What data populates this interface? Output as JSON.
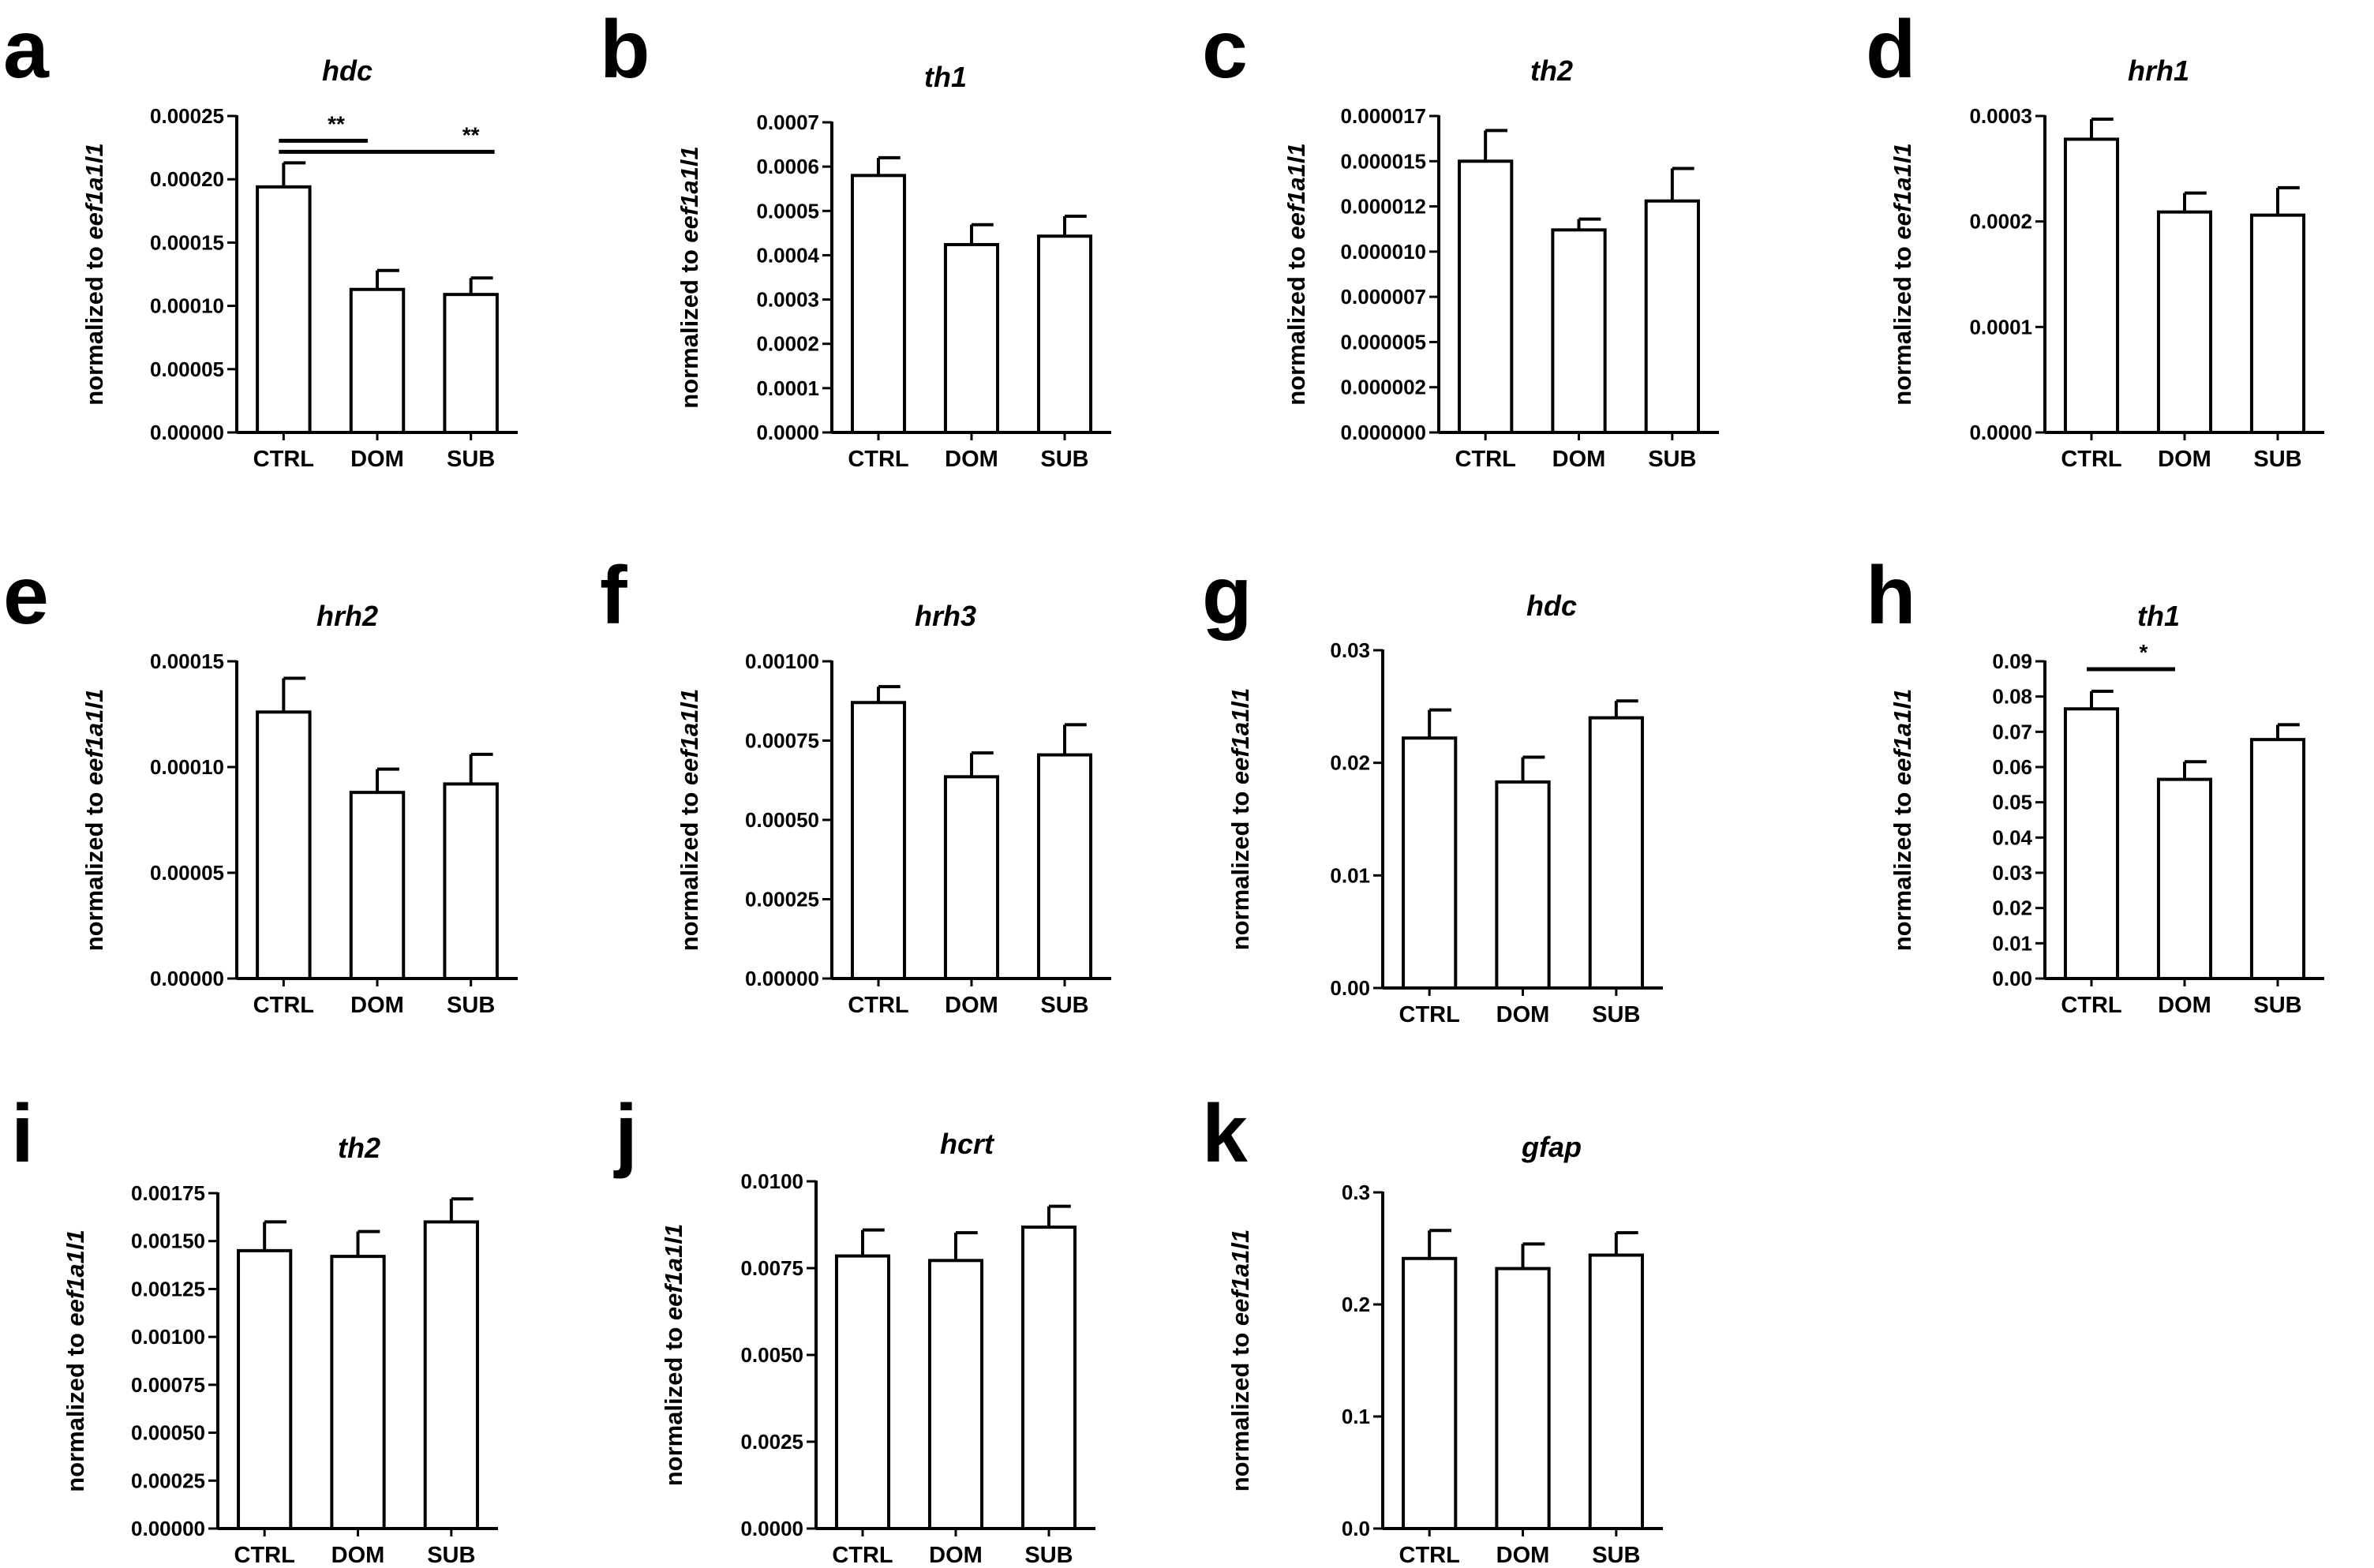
{
  "chart_data": [
    {
      "panel": "a",
      "type": "bar",
      "title": "hdc",
      "ylabel_prefix": "normalized to ",
      "ylabel_gene": "eef1a1l1",
      "categories": [
        "CTRL",
        "DOM",
        "SUB"
      ],
      "values": [
        0.000194,
        0.000113,
        0.000109
      ],
      "errors": [
        1.9e-05,
        1.5e-05,
        1.3e-05
      ],
      "ylim": [
        0,
        0.00025
      ],
      "yticks": [
        "0.00000",
        "0.00005",
        "0.00010",
        "0.00015",
        "0.00020",
        "0.00025"
      ],
      "significance": [
        {
          "from": 0,
          "to": 1,
          "label": "**"
        },
        {
          "from": 0,
          "to": 2,
          "label": "**"
        }
      ]
    },
    {
      "panel": "b",
      "type": "bar",
      "title": "th1",
      "ylabel_prefix": "normalized to ",
      "ylabel_gene": "eef1a1l1",
      "categories": [
        "CTRL",
        "DOM",
        "SUB"
      ],
      "values": [
        0.00058,
        0.000424,
        0.000443
      ],
      "errors": [
        4e-05,
        4.5e-05,
        4.5e-05
      ],
      "ylim": [
        0,
        0.0007
      ],
      "yticks": [
        "0.0000",
        "0.0001",
        "0.0002",
        "0.0003",
        "0.0004",
        "0.0005",
        "0.0006",
        "0.0007"
      ],
      "significance": []
    },
    {
      "panel": "c",
      "type": "bar",
      "title": "th2",
      "ylabel_prefix": "normalized to ",
      "ylabel_gene": "eef1a1l1",
      "categories": [
        "CTRL",
        "DOM",
        "SUB"
      ],
      "values": [
        1.5e-05,
        1.12e-05,
        1.28e-05
      ],
      "errors": [
        1.7e-06,
        6e-07,
        1.8e-06
      ],
      "ylim": [
        0,
        1.75e-05
      ],
      "yticks": [
        "0.000000",
        "0.000002",
        "0.000005",
        "0.000007",
        "0.000010",
        "0.000012",
        "0.000015",
        "0.000017"
      ],
      "significance": []
    },
    {
      "panel": "d",
      "type": "bar",
      "title": "hrh1",
      "ylabel_prefix": "normalized to ",
      "ylabel_gene": "eef1a1l1",
      "categories": [
        "CTRL",
        "DOM",
        "SUB"
      ],
      "values": [
        0.000278,
        0.000209,
        0.000206
      ],
      "errors": [
        1.9e-05,
        1.8e-05,
        2.6e-05
      ],
      "ylim": [
        0,
        0.0003
      ],
      "yticks": [
        "0.0000",
        "0.0001",
        "0.0002",
        "0.0003"
      ],
      "significance": []
    },
    {
      "panel": "e",
      "type": "bar",
      "title": "hrh2",
      "ylabel_prefix": "normalized to ",
      "ylabel_gene": "eef1a1l1",
      "categories": [
        "CTRL",
        "DOM",
        "SUB"
      ],
      "values": [
        0.000126,
        8.8e-05,
        9.2e-05
      ],
      "errors": [
        1.6e-05,
        1.1e-05,
        1.4e-05
      ],
      "ylim": [
        0,
        0.00015
      ],
      "yticks": [
        "0.00000",
        "0.00005",
        "0.00010",
        "0.00015"
      ],
      "significance": []
    },
    {
      "panel": "f",
      "type": "bar",
      "title": "hrh3",
      "ylabel_prefix": "normalized to ",
      "ylabel_gene": "eef1a1l1",
      "categories": [
        "CTRL",
        "DOM",
        "SUB"
      ],
      "values": [
        0.00087,
        0.000636,
        0.000705
      ],
      "errors": [
        5e-05,
        7.5e-05,
        9.5e-05
      ],
      "ylim": [
        0,
        0.001
      ],
      "yticks": [
        "0.00000",
        "0.00025",
        "0.00050",
        "0.00075",
        "0.00100"
      ],
      "significance": []
    },
    {
      "panel": "g",
      "type": "bar",
      "title": "hdc",
      "ylabel_prefix": "normalized to ",
      "ylabel_gene": "eef1a1l1",
      "categories": [
        "CTRL",
        "DOM",
        "SUB"
      ],
      "values": [
        0.0222,
        0.0183,
        0.024
      ],
      "errors": [
        0.0025,
        0.0022,
        0.0015
      ],
      "ylim": [
        0,
        0.03
      ],
      "yticks": [
        "0.00",
        "0.01",
        "0.02",
        "0.03"
      ],
      "significance": []
    },
    {
      "panel": "h",
      "type": "bar",
      "title": "th1",
      "ylabel_prefix": "normalized to ",
      "ylabel_gene": "eef1a1l1",
      "categories": [
        "CTRL",
        "DOM",
        "SUB"
      ],
      "values": [
        0.0765,
        0.0565,
        0.0678
      ],
      "errors": [
        0.005,
        0.005,
        0.0042
      ],
      "ylim": [
        0,
        0.09
      ],
      "yticks": [
        "0.00",
        "0.01",
        "0.02",
        "0.03",
        "0.04",
        "0.05",
        "0.06",
        "0.07",
        "0.08",
        "0.09"
      ],
      "significance": [
        {
          "from": 0,
          "to": 1,
          "label": "*"
        }
      ]
    },
    {
      "panel": "i",
      "type": "bar",
      "title": "th2",
      "ylabel_prefix": "normalized to ",
      "ylabel_gene": "eef1a1l1",
      "categories": [
        "CTRL",
        "DOM",
        "SUB"
      ],
      "values": [
        0.00145,
        0.00142,
        0.0016
      ],
      "errors": [
        0.00015,
        0.00013,
        0.00012
      ],
      "ylim": [
        0,
        0.00175
      ],
      "yticks": [
        "0.00000",
        "0.00025",
        "0.00050",
        "0.00075",
        "0.00100",
        "0.00125",
        "0.00150",
        "0.00175"
      ],
      "significance": []
    },
    {
      "panel": "j",
      "type": "bar",
      "title": "hcrt",
      "ylabel_prefix": "normalized to ",
      "ylabel_gene": "eef1a1l1",
      "categories": [
        "CTRL",
        "DOM",
        "SUB"
      ],
      "values": [
        0.00785,
        0.00772,
        0.00868
      ],
      "errors": [
        0.00075,
        0.0008,
        0.0006
      ],
      "ylim": [
        0,
        0.01
      ],
      "yticks": [
        "0.0000",
        "0.0025",
        "0.0050",
        "0.0075",
        "0.0100"
      ],
      "significance": []
    },
    {
      "panel": "k",
      "type": "bar",
      "title": "gfap",
      "ylabel_prefix": "normalized to ",
      "ylabel_gene": "eef1a1l1",
      "categories": [
        "CTRL",
        "DOM",
        "SUB"
      ],
      "values": [
        0.241,
        0.232,
        0.244
      ],
      "errors": [
        0.025,
        0.022,
        0.02
      ],
      "ylim": [
        0,
        0.3
      ],
      "yticks": [
        "0.0",
        "0.1",
        "0.2",
        "0.3"
      ],
      "significance": []
    }
  ]
}
